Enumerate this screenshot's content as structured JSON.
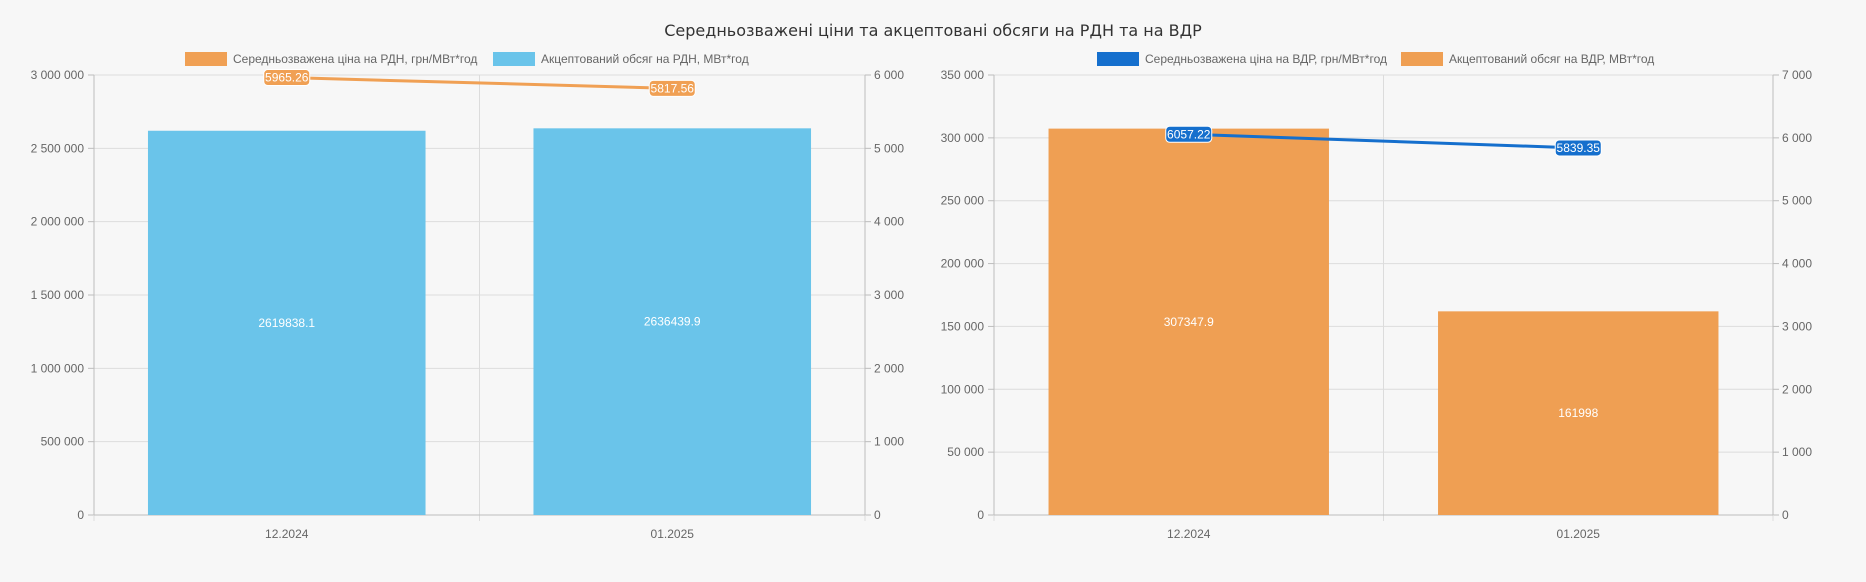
{
  "title": "Середньозважені ціни та акцептовані обсяги на РДН та на ВДР",
  "chart_data": [
    {
      "type": "bar",
      "categories": [
        "12.2024",
        "01.2025"
      ],
      "series": [
        {
          "name": "Середньозважена ціна на РДН, грн/МВт*год",
          "type": "line",
          "axis": "right",
          "color": "#f0a054",
          "values": [
            5965.26,
            5817.56
          ],
          "labels": [
            "5965.26",
            "5817.56"
          ]
        },
        {
          "name": "Акцептований обсяг на РДН, МВт*год",
          "type": "bar",
          "axis": "left",
          "color": "#6ac4ea",
          "values": [
            2619838.1,
            2636439.9
          ],
          "labels": [
            "2619838.1",
            "2636439.9"
          ]
        }
      ],
      "y_left": {
        "min": 0,
        "max": 3000000,
        "ticks": [
          0,
          500000,
          1000000,
          1500000,
          2000000,
          2500000,
          3000000
        ],
        "tick_labels": [
          "0",
          "500 000",
          "1 000 000",
          "1 500 000",
          "2 000 000",
          "2 500 000",
          "3 000 000"
        ]
      },
      "y_right": {
        "min": 0,
        "max": 6000,
        "ticks": [
          0,
          1000,
          2000,
          3000,
          4000,
          5000,
          6000
        ],
        "tick_labels": [
          "0",
          "1 000",
          "2 000",
          "3 000",
          "4 000",
          "5 000",
          "6 000"
        ]
      },
      "grid": true,
      "legend": "top"
    },
    {
      "type": "bar",
      "categories": [
        "12.2024",
        "01.2025"
      ],
      "series": [
        {
          "name": "Середньозважена ціна на ВДР, грн/МВт*год",
          "type": "line",
          "axis": "right",
          "color": "#156fcd",
          "values": [
            6057.22,
            5839.35
          ],
          "labels": [
            "6057.22",
            "5839.35"
          ]
        },
        {
          "name": "Акцептований обсяг на ВДР, МВт*год",
          "type": "bar",
          "axis": "left",
          "color": "#ef9f53",
          "values": [
            307347.9,
            161998
          ],
          "labels": [
            "307347.9",
            "161998"
          ]
        }
      ],
      "y_left": {
        "min": 0,
        "max": 350000,
        "ticks": [
          0,
          50000,
          100000,
          150000,
          200000,
          250000,
          300000,
          350000
        ],
        "tick_labels": [
          "0",
          "50 000",
          "100 000",
          "150 000",
          "200 000",
          "250 000",
          "300 000",
          "350 000"
        ]
      },
      "y_right": {
        "min": 0,
        "max": 7000,
        "ticks": [
          0,
          1000,
          2000,
          3000,
          4000,
          5000,
          6000,
          7000
        ],
        "tick_labels": [
          "0",
          "1 000",
          "2 000",
          "3 000",
          "4 000",
          "5 000",
          "6 000",
          "7 000"
        ]
      },
      "grid": true,
      "legend": "top"
    }
  ]
}
